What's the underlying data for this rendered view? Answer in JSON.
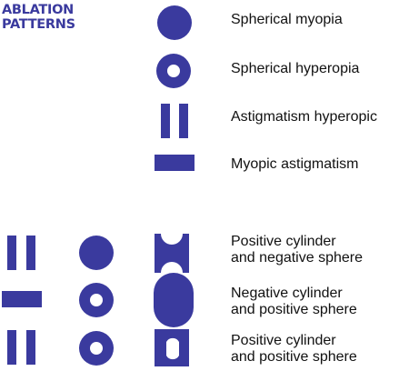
{
  "title": {
    "line1": "ABLATION",
    "line2": "PATTERNS"
  },
  "legend": [
    {
      "label": "Spherical myopia",
      "pattern": "filled-circle"
    },
    {
      "label": "Spherical hyperopia",
      "pattern": "ring"
    },
    {
      "label": "Astigmatism hyperopic",
      "pattern": "two-vertical-bars"
    },
    {
      "label": "Myopic astigmatism",
      "pattern": "horizontal-bar"
    }
  ],
  "combinations": [
    {
      "line1": "Positive cylinder",
      "line2": "and negative sphere",
      "components": [
        "two-vertical-bars",
        "filled-circle"
      ],
      "result": "circle-with-top-bottom-notches"
    },
    {
      "line1": "Negative cylinder",
      "line2": "and positive sphere",
      "components": [
        "horizontal-bar",
        "ring"
      ],
      "result": "circle-with-side-notches"
    },
    {
      "line1": "Positive cylinder",
      "line2": "and positive sphere",
      "components": [
        "two-vertical-bars",
        "ring"
      ],
      "result": "square-with-curved-cutout"
    }
  ],
  "colors": {
    "shape": "#3a3a9e",
    "title": "#3a3a9e",
    "text": "#111111",
    "background": "#ffffff"
  }
}
